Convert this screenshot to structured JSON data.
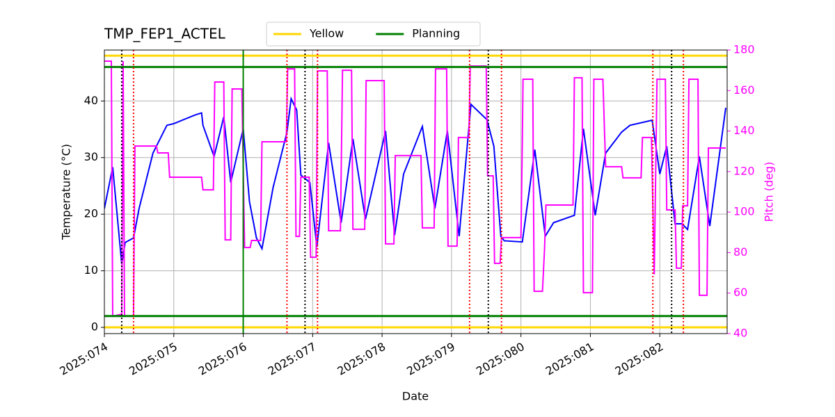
{
  "chart_data": {
    "type": "line",
    "title": "TMP_FEP1_ACTEL",
    "x_label": "Date",
    "y_label": "Temperature (°C)",
    "y2_label": "Pitch (deg)",
    "y2_color": "#ff00ff",
    "xlim": [
      74,
      82.97
    ],
    "ylim": [
      -1.1,
      49
    ],
    "y2lim": [
      40,
      180
    ],
    "xticks": [
      {
        "value": 74,
        "label": "2025:074"
      },
      {
        "value": 75,
        "label": "2025:075"
      },
      {
        "value": 76,
        "label": "2025:076"
      },
      {
        "value": 77,
        "label": "2025:077"
      },
      {
        "value": 78,
        "label": "2025:078"
      },
      {
        "value": 79,
        "label": "2025:079"
      },
      {
        "value": 80,
        "label": "2025:080"
      },
      {
        "value": 81,
        "label": "2025:081"
      },
      {
        "value": 82,
        "label": "2025:082"
      }
    ],
    "yticks": [
      0,
      10,
      20,
      30,
      40
    ],
    "y2ticks": [
      40,
      60,
      80,
      100,
      120,
      140,
      160,
      180
    ],
    "grid": true,
    "legend": "top",
    "hlines": [
      {
        "name": "Yellow",
        "color": "#ffd700",
        "values": [
          0,
          48
        ]
      },
      {
        "name": "Planning",
        "color": "#008000",
        "values": [
          2,
          46
        ]
      }
    ],
    "vlines": [
      {
        "color": "#008000",
        "style": "solid",
        "values": [
          76
        ]
      },
      {
        "color": "#000000",
        "style": "dotted",
        "values": [
          74.25,
          76.89,
          79.53,
          82.17
        ]
      },
      {
        "color": "#ff0000",
        "style": "dotted",
        "values": [
          74.42,
          76.63,
          77.07,
          79.26,
          79.72,
          81.9,
          82.34
        ]
      }
    ],
    "series": [
      {
        "color": "#0000ff",
        "x": [
          74.0,
          74.12,
          74.25,
          74.3,
          74.42,
          74.5,
          74.7,
          74.9,
          75.0,
          75.3,
          75.4,
          75.42,
          75.58,
          75.72,
          75.82,
          76.0,
          76.09,
          76.19,
          76.27,
          76.43,
          76.63,
          76.69,
          76.77,
          76.83,
          76.96,
          77.06,
          77.23,
          77.41,
          77.58,
          77.76,
          78.05,
          78.18,
          78.31,
          78.58,
          78.76,
          78.94,
          79.11,
          79.28,
          79.51,
          79.61,
          79.71,
          79.76,
          80.02,
          80.2,
          80.35,
          80.47,
          80.77,
          80.9,
          81.07,
          81.22,
          81.45,
          81.57,
          81.89,
          82.0,
          82.1,
          82.22,
          82.32,
          82.4,
          82.57,
          82.72,
          82.95
        ],
        "values": [
          21,
          28.3,
          11.2,
          15,
          15.8,
          21,
          30.8,
          35.7,
          36,
          37.5,
          37.9,
          35.7,
          30.2,
          37.2,
          25.6,
          35.1,
          22.2,
          15.8,
          13.9,
          24.7,
          34.5,
          40.4,
          38.4,
          26.9,
          25.6,
          14.2,
          32.6,
          18.5,
          33.3,
          19.1,
          34.7,
          16.3,
          27.1,
          35.5,
          21,
          34.7,
          16.1,
          39.4,
          36.7,
          32,
          16.1,
          15.3,
          15.1,
          31.4,
          16.1,
          18.5,
          19.8,
          35.1,
          19.8,
          30.8,
          34.5,
          35.7,
          36.6,
          27.1,
          32,
          18.3,
          18.3,
          17.3,
          30.2,
          17.9,
          38.8
        ]
      },
      {
        "color": "#ff00ff",
        "axis": "y2",
        "x": [
          74.0,
          74.1,
          74.12,
          74.25,
          74.27,
          74.29,
          74.42,
          74.44,
          74.75,
          74.77,
          74.92,
          74.94,
          75.4,
          75.42,
          75.57,
          75.59,
          75.72,
          75.74,
          75.82,
          75.84,
          75.98,
          76.02,
          76.1,
          76.12,
          76.25,
          76.27,
          76.62,
          76.64,
          76.74,
          76.76,
          76.81,
          76.83,
          76.95,
          76.97,
          77.05,
          77.07,
          77.21,
          77.23,
          77.4,
          77.43,
          77.56,
          77.58,
          77.75,
          77.77,
          78.03,
          78.05,
          78.17,
          78.19,
          78.56,
          78.58,
          78.75,
          78.77,
          78.93,
          78.95,
          79.08,
          79.1,
          79.25,
          79.27,
          79.5,
          79.52,
          79.6,
          79.62,
          79.7,
          79.72,
          80.0,
          80.02,
          80.03,
          80.17,
          80.19,
          80.31,
          80.34,
          80.36,
          80.75,
          80.77,
          80.88,
          80.9,
          81.03,
          81.05,
          81.18,
          81.22,
          81.45,
          81.47,
          81.73,
          81.75,
          81.88,
          81.92,
          81.96,
          82.08,
          82.1,
          82.22,
          82.24,
          82.31,
          82.33,
          82.4,
          82.42,
          82.55,
          82.57,
          82.68,
          82.7,
          82.95
        ],
        "values": [
          174.5,
          174.5,
          48.6,
          49.6,
          174.5,
          48.6,
          48.6,
          132.6,
          132.6,
          129.2,
          129.2,
          117.2,
          117.2,
          111,
          111,
          164.2,
          164.2,
          86.3,
          86.3,
          160.8,
          160.8,
          82.5,
          82.5,
          86,
          86,
          134.7,
          134.7,
          170.7,
          170.7,
          88,
          88,
          117.2,
          117.2,
          77.7,
          77.7,
          169.7,
          169.7,
          90.8,
          90.8,
          170,
          170,
          91.5,
          91.5,
          164.9,
          164.9,
          84.3,
          84.3,
          127.9,
          127.9,
          92.2,
          92.2,
          170.7,
          170.7,
          83.2,
          83.2,
          136.8,
          136.8,
          172.1,
          172.1,
          117.9,
          117.9,
          74.7,
          74.7,
          87.4,
          87.4,
          134.7,
          165.6,
          165.6,
          60.9,
          60.9,
          81.9,
          103.5,
          103.5,
          166.3,
          166.3,
          60.2,
          60.2,
          165.6,
          165.6,
          122.4,
          122.4,
          116.9,
          116.9,
          136.8,
          136.8,
          69.2,
          165.6,
          165.6,
          101.1,
          101.1,
          72.3,
          72.3,
          103.1,
          103.1,
          165.6,
          165.6,
          58.9,
          58.9,
          131.6,
          131.6
        ]
      }
    ]
  }
}
